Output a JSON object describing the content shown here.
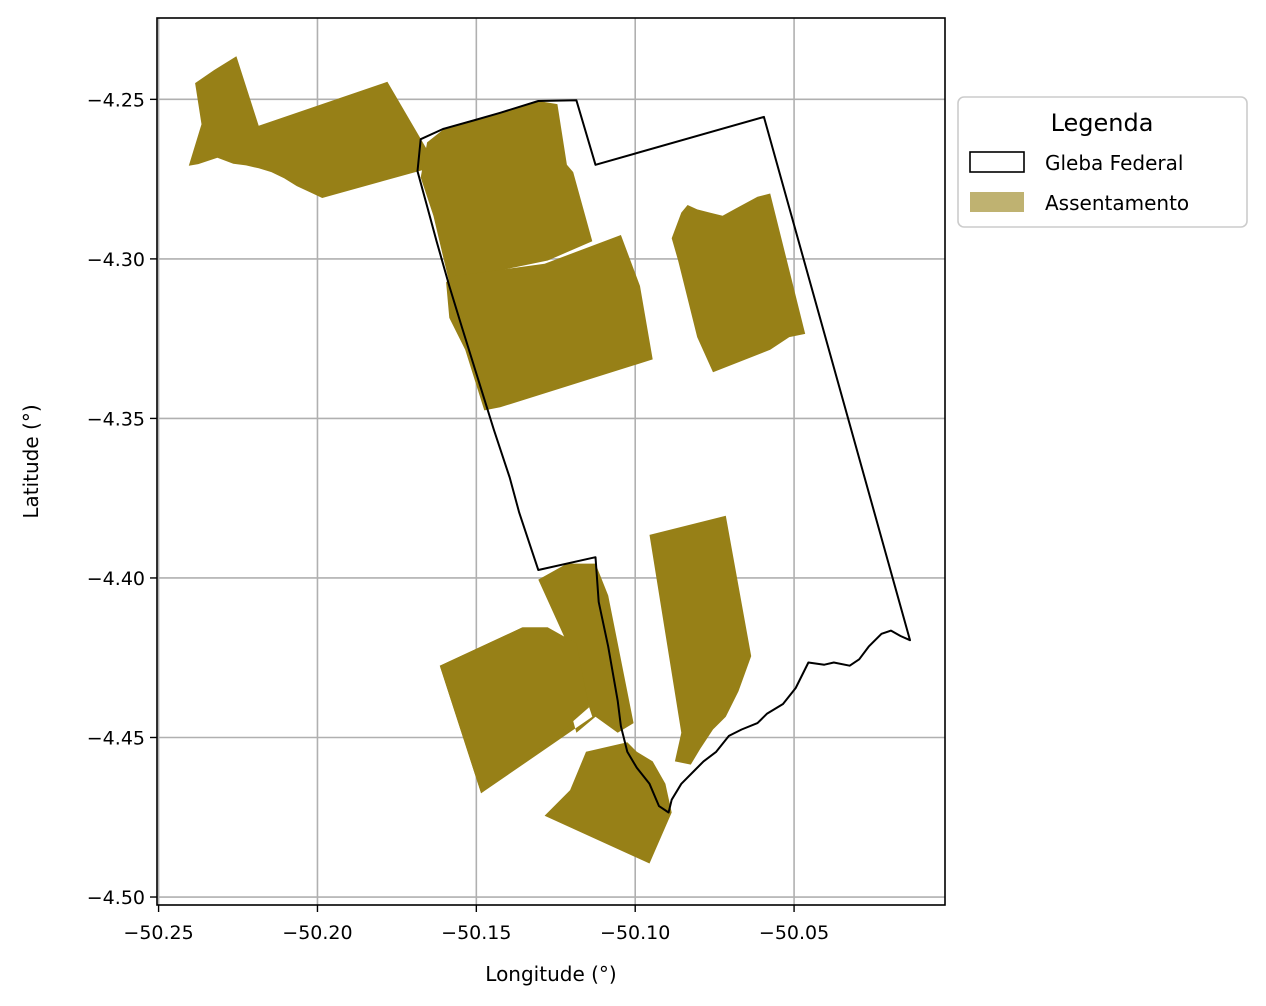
{
  "chart_data": {
    "type": "map",
    "xlabel": "Longitude (°)",
    "ylabel": "Latitude (°)",
    "xlim": [
      -50.2505,
      -50.0025
    ],
    "ylim": [
      -4.5025,
      -4.2245
    ],
    "x_ticks": [
      -50.25,
      -50.2,
      -50.15,
      -50.1,
      -50.05
    ],
    "x_tick_labels": [
      "−50.25",
      "−50.20",
      "−50.15",
      "−50.10",
      "−50.05"
    ],
    "y_ticks": [
      -4.25,
      -4.3,
      -4.35,
      -4.4,
      -4.45,
      -4.5
    ],
    "y_tick_labels": [
      "−4.25",
      "−4.30",
      "−4.35",
      "−4.40",
      "−4.45",
      "−4.50"
    ],
    "grid": true,
    "legend": {
      "title": "Legenda",
      "placement": "outside upper right",
      "entries": [
        {
          "label": "Gleba Federal",
          "fill": "#ffffff",
          "edge": "#000000"
        },
        {
          "label": "Assentamento",
          "fill": "#bfb271",
          "edge": "none"
        }
      ]
    },
    "colors": {
      "assentamento": "#978017",
      "gleba_edge": "#000000",
      "grid": "#b0b0b0"
    },
    "layers": {
      "assentamento": [
        {
          "name": "northwest",
          "coords": [
            [
              -50.2385,
              -4.2449
            ],
            [
              -50.2325,
              -4.2408
            ],
            [
              -50.2255,
              -4.2365
            ],
            [
              -50.2185,
              -4.2583
            ],
            [
              -50.178,
              -4.2445
            ],
            [
              -50.1645,
              -4.2675
            ],
            [
              -50.1645,
              -4.2715
            ],
            [
              -50.1985,
              -4.2809
            ],
            [
              -50.2015,
              -4.2795
            ],
            [
              -50.2065,
              -4.2772
            ],
            [
              -50.2105,
              -4.2747
            ],
            [
              -50.2145,
              -4.2728
            ],
            [
              -50.2185,
              -4.2716
            ],
            [
              -50.2225,
              -4.2707
            ],
            [
              -50.2265,
              -4.2702
            ],
            [
              -50.2315,
              -4.2683
            ],
            [
              -50.2375,
              -4.2703
            ],
            [
              -50.2405,
              -4.2708
            ],
            [
              -50.2365,
              -4.2578
            ]
          ]
        },
        {
          "name": "north-strip",
          "coords": [
            [
              -50.1655,
              -4.2635
            ],
            [
              -50.1605,
              -4.2595
            ],
            [
              -50.1505,
              -4.2565
            ],
            [
              -50.1425,
              -4.2542
            ],
            [
              -50.1305,
              -4.2505
            ],
            [
              -50.1245,
              -4.2515
            ],
            [
              -50.1215,
              -4.2705
            ],
            [
              -50.1195,
              -4.2728
            ],
            [
              -50.1135,
              -4.2945
            ],
            [
              -50.1275,
              -4.3005
            ],
            [
              -50.1555,
              -4.3063
            ],
            [
              -50.1585,
              -4.3075
            ],
            [
              -50.1635,
              -4.2865
            ],
            [
              -50.1675,
              -4.2745
            ]
          ]
        },
        {
          "name": "west-middle",
          "coords": [
            [
              -50.1595,
              -4.3073
            ],
            [
              -50.1575,
              -4.3055
            ],
            [
              -50.1285,
              -4.3015
            ],
            [
              -50.1045,
              -4.2925
            ],
            [
              -50.0985,
              -4.3085
            ],
            [
              -50.0945,
              -4.3315
            ],
            [
              -50.1425,
              -4.3465
            ],
            [
              -50.1475,
              -4.3475
            ],
            [
              -50.1535,
              -4.3285
            ],
            [
              -50.1585,
              -4.3185
            ]
          ]
        },
        {
          "name": "east-middle",
          "coords": [
            [
              -50.0855,
              -4.2855
            ],
            [
              -50.0835,
              -4.2831
            ],
            [
              -50.0805,
              -4.2845
            ],
            [
              -50.0765,
              -4.2855
            ],
            [
              -50.0725,
              -4.2865
            ],
            [
              -50.0685,
              -4.2843
            ],
            [
              -50.0615,
              -4.2805
            ],
            [
              -50.0575,
              -4.2795
            ],
            [
              -50.0465,
              -4.3235
            ],
            [
              -50.0515,
              -4.3245
            ],
            [
              -50.0575,
              -4.3285
            ],
            [
              -50.0755,
              -4.3355
            ],
            [
              -50.0805,
              -4.3245
            ],
            [
              -50.0865,
              -4.3005
            ],
            [
              -50.0885,
              -4.2935
            ]
          ]
        },
        {
          "name": "south-west-a",
          "coords": [
            [
              -50.1305,
              -4.4005
            ],
            [
              -50.1215,
              -4.3955
            ],
            [
              -50.1125,
              -4.3955
            ],
            [
              -50.1085,
              -4.4055
            ],
            [
              -50.1005,
              -4.4455
            ],
            [
              -50.1055,
              -4.4485
            ],
            [
              -50.1125,
              -4.4435
            ],
            [
              -50.1185,
              -4.4485
            ],
            [
              -50.1275,
              -4.4155
            ],
            [
              -50.1355,
              -4.4155
            ],
            [
              -50.1615,
              -4.4275
            ],
            [
              -50.1485,
              -4.4675
            ],
            [
              -50.1135,
              -4.4435
            ],
            [
              -50.1205,
              -4.4225
            ]
          ]
        },
        {
          "name": "south-west-b",
          "coords": [
            [
              -50.1145,
              -4.4405
            ],
            [
              -50.1225,
              -4.4475
            ],
            [
              -50.1485,
              -4.4675
            ],
            [
              -50.1615,
              -4.4275
            ],
            [
              -50.1355,
              -4.4155
            ],
            [
              -50.1275,
              -4.4155
            ],
            [
              -50.1185,
              -4.4205
            ]
          ]
        },
        {
          "name": "south-center",
          "coords": [
            [
              -50.1155,
              -4.4545
            ],
            [
              -50.1025,
              -4.4515
            ],
            [
              -50.0995,
              -4.4545
            ],
            [
              -50.0945,
              -4.4575
            ],
            [
              -50.0905,
              -4.4645
            ],
            [
              -50.0885,
              -4.4735
            ],
            [
              -50.0955,
              -4.4895
            ],
            [
              -50.1285,
              -4.4745
            ],
            [
              -50.1205,
              -4.4665
            ]
          ]
        },
        {
          "name": "south-east",
          "coords": [
            [
              -50.0955,
              -4.3865
            ],
            [
              -50.0715,
              -4.3805
            ],
            [
              -50.0635,
              -4.4245
            ],
            [
              -50.0675,
              -4.4355
            ],
            [
              -50.0715,
              -4.4435
            ],
            [
              -50.0755,
              -4.4475
            ],
            [
              -50.0795,
              -4.4535
            ],
            [
              -50.0825,
              -4.4585
            ],
            [
              -50.0875,
              -4.4575
            ],
            [
              -50.0855,
              -4.4485
            ]
          ]
        }
      ],
      "gleba_federal": [
        [
          -50.1675,
          -4.2625
        ],
        [
          -50.1605,
          -4.2593
        ],
        [
          -50.1505,
          -4.2565
        ],
        [
          -50.1425,
          -4.2542
        ],
        [
          -50.1305,
          -4.2505
        ],
        [
          -50.1185,
          -4.2503
        ],
        [
          -50.1125,
          -4.2705
        ],
        [
          -50.0595,
          -4.2555
        ],
        [
          -50.0135,
          -4.4195
        ],
        [
          -50.0165,
          -4.4182
        ],
        [
          -50.0195,
          -4.4165
        ],
        [
          -50.0225,
          -4.4175
        ],
        [
          -50.0265,
          -4.4215
        ],
        [
          -50.0295,
          -4.4255
        ],
        [
          -50.0325,
          -4.4275
        ],
        [
          -50.0375,
          -4.4265
        ],
        [
          -50.0405,
          -4.4272
        ],
        [
          -50.0455,
          -4.4265
        ],
        [
          -50.0495,
          -4.4345
        ],
        [
          -50.0535,
          -4.4395
        ],
        [
          -50.0585,
          -4.4425
        ],
        [
          -50.0615,
          -4.4455
        ],
        [
          -50.0665,
          -4.4475
        ],
        [
          -50.0705,
          -4.4495
        ],
        [
          -50.0745,
          -4.4545
        ],
        [
          -50.0785,
          -4.4575
        ],
        [
          -50.0815,
          -4.4605
        ],
        [
          -50.0855,
          -4.4645
        ],
        [
          -50.0885,
          -4.4695
        ],
        [
          -50.0895,
          -4.4735
        ],
        [
          -50.0925,
          -4.4715
        ],
        [
          -50.0955,
          -4.4645
        ],
        [
          -50.0995,
          -4.4595
        ],
        [
          -50.1025,
          -4.4545
        ],
        [
          -50.1045,
          -4.4465
        ],
        [
          -50.1055,
          -4.4385
        ],
        [
          -50.1085,
          -4.4215
        ],
        [
          -50.1115,
          -4.4075
        ],
        [
          -50.1125,
          -4.3935
        ],
        [
          -50.1305,
          -4.3975
        ],
        [
          -50.1325,
          -4.3915
        ],
        [
          -50.1365,
          -4.3795
        ],
        [
          -50.1395,
          -4.3685
        ],
        [
          -50.1445,
          -4.3535
        ],
        [
          -50.1495,
          -4.3375
        ],
        [
          -50.1545,
          -4.3215
        ],
        [
          -50.1585,
          -4.3085
        ],
        [
          -50.1625,
          -4.2945
        ],
        [
          -50.1655,
          -4.2835
        ],
        [
          -50.1685,
          -4.2725
        ]
      ]
    }
  }
}
